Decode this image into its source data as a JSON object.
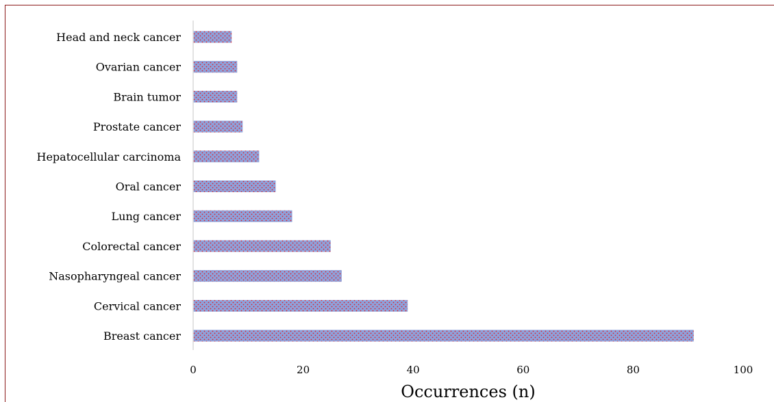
{
  "chart_data": {
    "type": "bar",
    "orientation": "horizontal",
    "categories": [
      "Breast cancer",
      "Cervical cancer",
      "Nasopharyngeal cancer",
      "Colorectal cancer",
      "Lung cancer",
      "Oral cancer",
      "Hepatocellular carcinoma",
      "Prostate cancer",
      "Brain tumor",
      "Ovarian cancer",
      "Head and neck cancer"
    ],
    "values": [
      91,
      39,
      27,
      25,
      18,
      15,
      12,
      9,
      8,
      8,
      7
    ],
    "title": "",
    "xlabel": "Occurrences (n)",
    "ylabel": "",
    "xlim": [
      0,
      100
    ],
    "xticks": [
      "0",
      "20",
      "40",
      "60",
      "80",
      "100"
    ],
    "grid": false,
    "legend": "none",
    "colors": {
      "bar_fill": "#8ea2dc",
      "bar_dots": "#e0202a",
      "border": "#8b1a1a",
      "axis": "#d9d9d9"
    }
  }
}
